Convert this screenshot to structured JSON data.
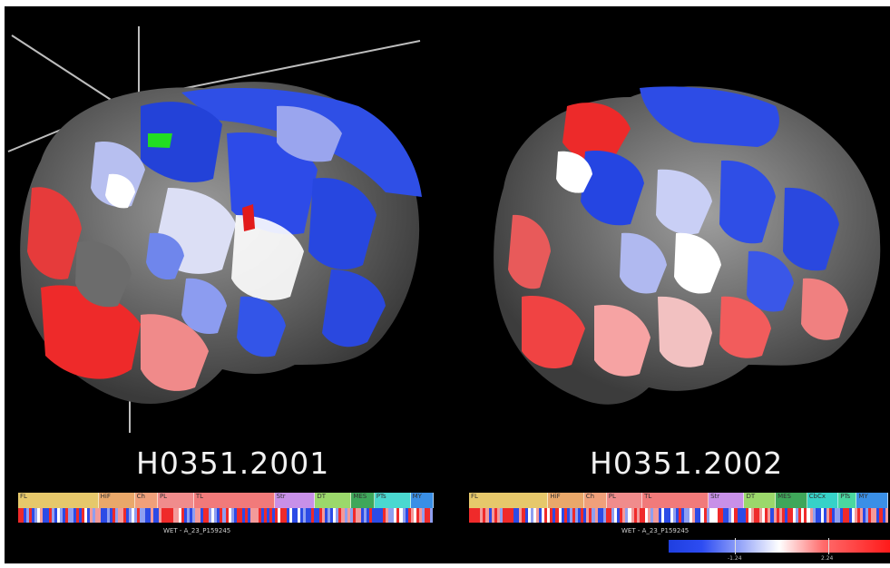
{
  "left_panel": {
    "donor_label": "H0351.2001",
    "probe_label": "WET - A_23_P159245",
    "region_labels": [
      "FL",
      "HiF",
      "Ch",
      "PL",
      "TL",
      "Str",
      "DT",
      "MES",
      "PTs",
      "MY"
    ]
  },
  "right_panel": {
    "donor_label": "H0351.2002",
    "probe_label": "WET - A_23_P159245",
    "region_labels": [
      "FL",
      "HiF",
      "Ch",
      "PL",
      "TL",
      "Str",
      "DT",
      "MES",
      "CbCx",
      "PTs",
      "MY"
    ]
  },
  "colorbar": {
    "min_label": "-1.24",
    "max_label": "2.24",
    "colors": {
      "low": "#1f3fe0",
      "mid": "#ffffff",
      "high": "#ff1a1a"
    }
  },
  "icons": [
    "3d-axis-icon"
  ]
}
